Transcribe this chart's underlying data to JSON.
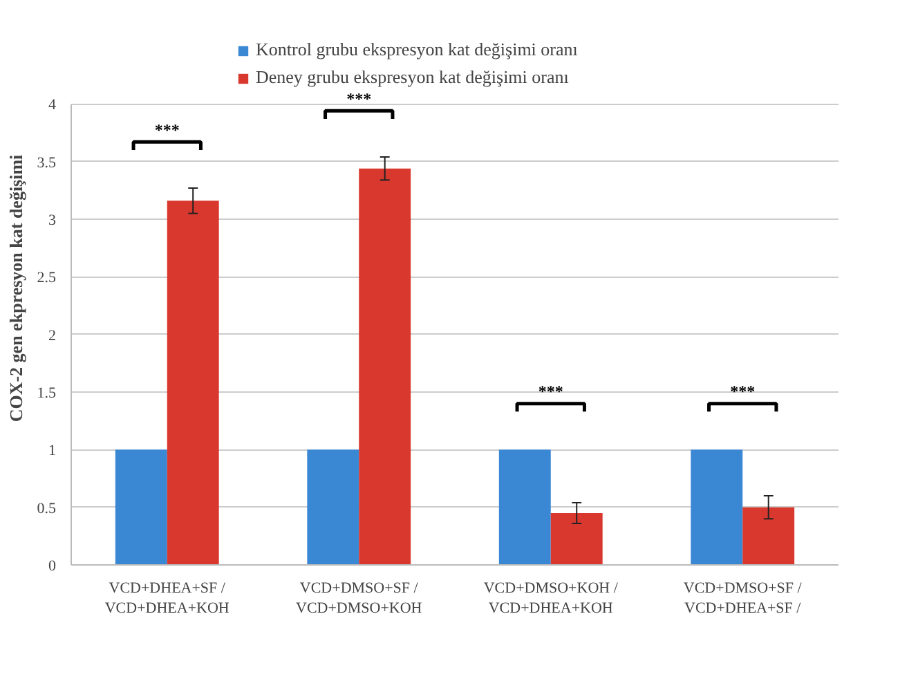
{
  "chart_data": {
    "type": "bar",
    "ylabel": "COX-2 gen ekpresyon kat değişimi",
    "categories": [
      "VCD+DHEA+SF /\nVCD+DHEA+KOH",
      "VCD+DMSO+SF /\nVCD+DMSO+KOH",
      "VCD+DMSO+KOH /\nVCD+DHEA+KOH",
      "VCD+DMSO+SF /\nVCD+DHEA+SF /"
    ],
    "series": [
      {
        "name": "Kontrol grubu ekspresyon kat değişimi oranı",
        "color": "#3a87d4",
        "values": [
          1,
          1,
          1,
          1
        ]
      },
      {
        "name": "Deney grubu ekspresyon kat değişimi oranı",
        "color": "#d9382f",
        "values": [
          3.16,
          3.44,
          0.45,
          0.5
        ],
        "errors": [
          0.11,
          0.1,
          0.09,
          0.1
        ]
      }
    ],
    "annotations": [
      "***",
      "***",
      "***",
      "***"
    ],
    "ylim": [
      0,
      4
    ],
    "yticks": [
      0,
      0.5,
      1,
      1.5,
      2,
      2.5,
      3,
      3.5,
      4
    ],
    "grid": "y",
    "legend": "top"
  }
}
